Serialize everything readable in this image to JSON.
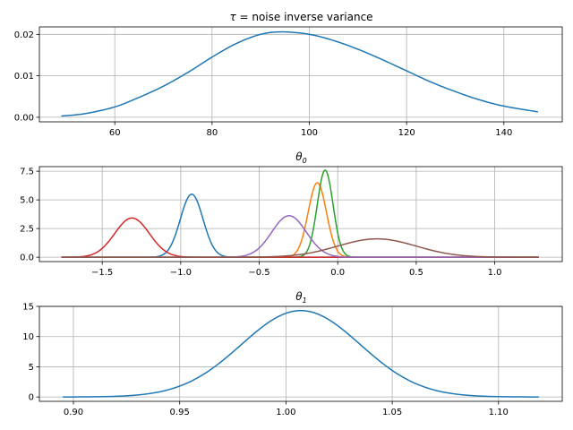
{
  "chart_data": [
    {
      "type": "line",
      "title": "τ = noise inverse variance",
      "title_symbol": "τ",
      "title_rest": " = noise inverse variance",
      "xlim": [
        44.5,
        152
      ],
      "ylim": [
        -0.0011,
        0.0218
      ],
      "xticks": [
        60,
        80,
        100,
        120,
        140
      ],
      "xtick_labels": [
        "60",
        "80",
        "100",
        "120",
        "140"
      ],
      "yticks": [
        0.0,
        0.01,
        0.02
      ],
      "ytick_labels": [
        "0.00",
        "0.01",
        "0.02"
      ],
      "grid": true,
      "series": [
        {
          "color": "#1f77b4",
          "x": [
            49,
            54,
            60,
            65,
            70,
            75,
            80,
            85,
            90,
            94.5,
            100,
            105,
            110,
            115,
            120,
            125,
            130,
            135,
            140,
            147
          ],
          "y": [
            0.0003,
            0.0009,
            0.0025,
            0.0048,
            0.0075,
            0.0108,
            0.0145,
            0.0178,
            0.02,
            0.0206,
            0.02,
            0.0185,
            0.0164,
            0.0139,
            0.0112,
            0.0085,
            0.0062,
            0.0042,
            0.0027,
            0.0013
          ]
        }
      ]
    },
    {
      "type": "line",
      "title": "θ0",
      "title_symbol": "θ",
      "title_sub": "0",
      "xlim": [
        -1.9,
        1.43
      ],
      "ylim": [
        -0.38,
        7.9
      ],
      "xticks": [
        -1.5,
        -1.0,
        -0.5,
        0.0,
        0.5,
        1.0
      ],
      "xtick_labels": [
        "−1.5",
        "−1.0",
        "−0.5",
        "0.0",
        "0.5",
        "1.0"
      ],
      "yticks": [
        0.0,
        2.5,
        5.0,
        7.5
      ],
      "ytick_labels": [
        "0.0",
        "2.5",
        "5.0",
        "7.5"
      ],
      "grid": true,
      "x_range": [
        -1.76,
        1.28
      ],
      "series": [
        {
          "color": "#1f77b4",
          "mu": -0.93,
          "peak": 5.5,
          "sigma": 0.072
        },
        {
          "color": "#ff7f0e",
          "mu": -0.13,
          "peak": 6.5,
          "sigma": 0.058
        },
        {
          "color": "#2ca02c",
          "mu": -0.08,
          "peak": 7.6,
          "sigma": 0.05
        },
        {
          "color": "#d62728",
          "mu": -1.31,
          "peak": 3.42,
          "sigma": 0.11
        },
        {
          "color": "#9467bd",
          "mu": -0.31,
          "peak": 3.62,
          "sigma": 0.11
        },
        {
          "color": "#8c564b",
          "mu": 0.25,
          "peak": 1.6,
          "sigma": 0.25
        }
      ]
    },
    {
      "type": "line",
      "title": "θ1",
      "title_symbol": "θ",
      "title_sub": "1",
      "xlim": [
        0.884,
        1.13
      ],
      "ylim": [
        -0.72,
        15.0
      ],
      "xticks": [
        0.9,
        0.95,
        1.0,
        1.05,
        1.1
      ],
      "xtick_labels": [
        "0.90",
        "0.95",
        "1.00",
        "1.05",
        "1.10"
      ],
      "yticks": [
        0,
        5,
        10,
        15
      ],
      "ytick_labels": [
        "0",
        "5",
        "10",
        "15"
      ],
      "grid": true,
      "x_range": [
        0.895,
        1.119
      ],
      "series": [
        {
          "color": "#1f77b4",
          "mu": 1.007,
          "peak": 14.3,
          "sigma": 0.028
        }
      ]
    }
  ]
}
